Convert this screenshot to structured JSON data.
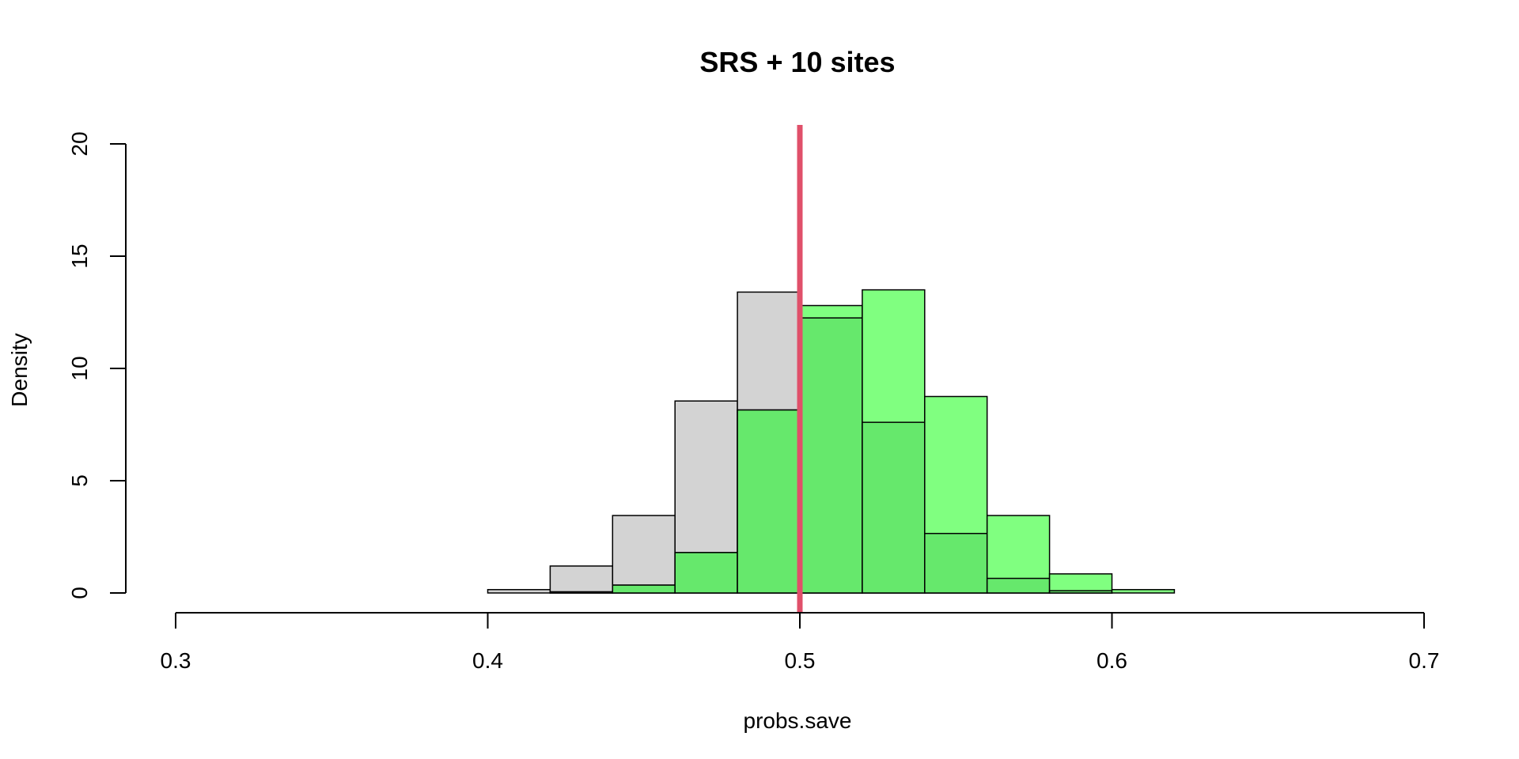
{
  "chart_data": {
    "type": "bar",
    "title": "SRS + 10 sites",
    "xlabel": "probs.save",
    "ylabel": "Density",
    "xlim": [
      0.3,
      0.7
    ],
    "ylim": [
      0,
      20
    ],
    "x_ticks": [
      "0.3",
      "0.4",
      "0.5",
      "0.6",
      "0.7"
    ],
    "y_ticks": [
      "0",
      "5",
      "10",
      "15",
      "20"
    ],
    "bin_edges": [
      0.4,
      0.42,
      0.44,
      0.46,
      0.48,
      0.5,
      0.52,
      0.54,
      0.56,
      0.58,
      0.6,
      0.62,
      0.64
    ],
    "series": [
      {
        "color": "#d3d3d3",
        "values": [
          0.15,
          1.2,
          3.45,
          8.55,
          13.4,
          12.25,
          7.6,
          2.65,
          0.65,
          0.1,
          0.0,
          0.0
        ]
      },
      {
        "color": "#80ff80",
        "values": [
          0.0,
          0.05,
          0.35,
          1.8,
          8.15,
          12.8,
          13.5,
          8.75,
          3.45,
          0.85,
          0.15,
          0.0
        ]
      }
    ],
    "overlap_color": "#66e86c",
    "reference_line": {
      "x": 0.5,
      "color": "#e0506a"
    },
    "grid": false,
    "legend": "none"
  }
}
